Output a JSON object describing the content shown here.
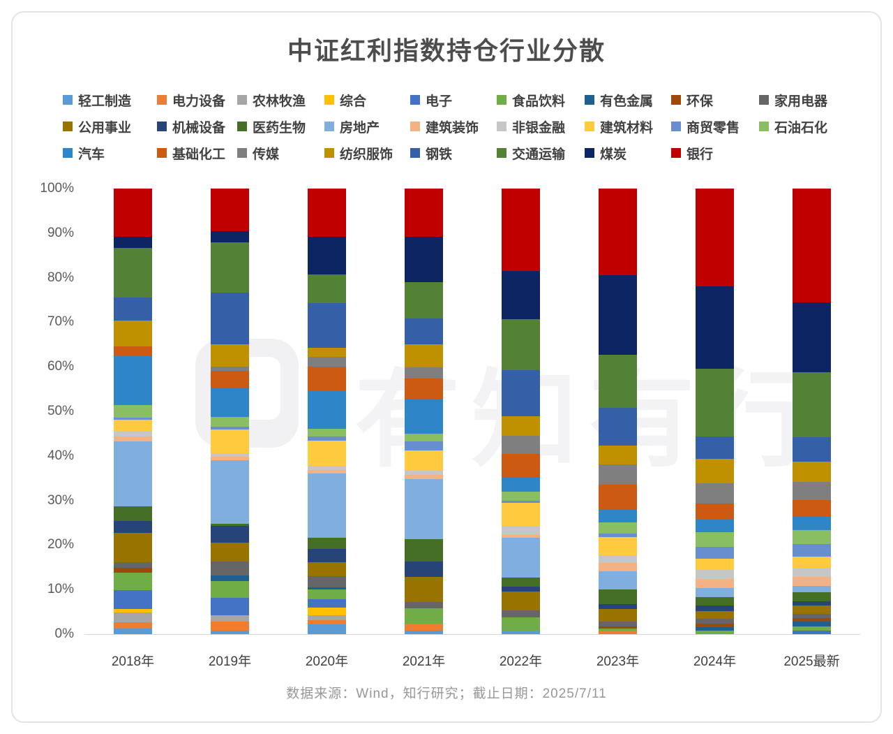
{
  "title": "中证红利指数持仓行业分散",
  "footer": "数据来源：Wind，知行研究；截止日期：2025/7/11",
  "watermark": "有知有行",
  "y_axis": {
    "ticks": [
      "100%",
      "90%",
      "80%",
      "70%",
      "60%",
      "50%",
      "40%",
      "30%",
      "20%",
      "10%",
      "0%"
    ]
  },
  "chart_data": {
    "type": "bar",
    "stacked": true,
    "unit": "percent",
    "grid": false,
    "legend_position": "top",
    "ylim": [
      0,
      100
    ],
    "categories": [
      "2018年",
      "2019年",
      "2020年",
      "2021年",
      "2022年",
      "2023年",
      "2024年",
      "2025最新"
    ],
    "series_note": "series listed bottom-to-top of stack; values are % of holdings per year",
    "series": [
      {
        "name": "轻工制造",
        "color": "#5B9BD5",
        "values": [
          1.2,
          0.8,
          2.2,
          0.8,
          0.8,
          0,
          0,
          0
        ]
      },
      {
        "name": "电力设备",
        "color": "#ED7D31",
        "values": [
          1.5,
          2.0,
          1.0,
          1.5,
          0,
          0.8,
          0,
          0
        ]
      },
      {
        "name": "农林牧渔",
        "color": "#A6A6A6",
        "values": [
          2.2,
          1.5,
          1.0,
          0,
          0,
          0,
          0,
          0
        ]
      },
      {
        "name": "综合",
        "color": "#FFC000",
        "values": [
          0.8,
          0,
          1.8,
          0,
          0,
          0,
          0,
          0
        ]
      },
      {
        "name": "电子",
        "color": "#4472C4",
        "values": [
          4.2,
          3.8,
          1.8,
          0,
          0,
          0,
          0,
          0.8
        ]
      },
      {
        "name": "食品饮料",
        "color": "#70AD47",
        "values": [
          3.8,
          3.8,
          2.2,
          3.5,
          3.0,
          0.5,
          0.8,
          1.0
        ]
      },
      {
        "name": "有色金属",
        "color": "#1F6091",
        "values": [
          0,
          1.2,
          0.5,
          0,
          0,
          0,
          0.8,
          1.0
        ]
      },
      {
        "name": "环保",
        "color": "#9E480E",
        "values": [
          1.2,
          0,
          0,
          0,
          0,
          0.5,
          0.8,
          0.8
        ]
      },
      {
        "name": "家用电器",
        "color": "#666666",
        "values": [
          1.2,
          3.2,
          2.5,
          1.5,
          1.5,
          1.0,
          1.0,
          1.0
        ]
      },
      {
        "name": "公用事业",
        "color": "#997300",
        "values": [
          6.5,
          4.2,
          3.2,
          5.5,
          4.2,
          2.8,
          1.8,
          1.8
        ]
      },
      {
        "name": "机械设备",
        "color": "#264478",
        "values": [
          2.8,
          3.8,
          3.0,
          3.5,
          1.2,
          1.2,
          1.2,
          1.0
        ]
      },
      {
        "name": "医药生物",
        "color": "#456F26",
        "values": [
          3.2,
          0.5,
          2.5,
          5.0,
          2.0,
          3.2,
          2.0,
          2.0
        ]
      },
      {
        "name": "房地产",
        "color": "#7FAEDF",
        "values": [
          14.5,
          14.2,
          14.5,
          13.5,
          9.0,
          4.2,
          2.0,
          1.5
        ]
      },
      {
        "name": "建筑装饰",
        "color": "#F4B183",
        "values": [
          1.2,
          0.8,
          0.8,
          1.0,
          0.8,
          1.8,
          2.0,
          2.0
        ]
      },
      {
        "name": "非银金融",
        "color": "#C6C6C6",
        "values": [
          1.2,
          0.8,
          0.8,
          1.0,
          1.8,
          1.8,
          2.0,
          2.0
        ]
      },
      {
        "name": "建筑材料",
        "color": "#FFCB3E",
        "values": [
          2.5,
          5.4,
          5.8,
          4.5,
          5.2,
          4.0,
          2.5,
          2.5
        ]
      },
      {
        "name": "商贸零售",
        "color": "#698ED0",
        "values": [
          0.5,
          0.6,
          0.8,
          2.0,
          0.5,
          0.8,
          2.8,
          2.8
        ]
      },
      {
        "name": "石油石化",
        "color": "#89BE63",
        "values": [
          2.7,
          2.2,
          1.8,
          1.8,
          2.0,
          2.5,
          3.2,
          3.2
        ]
      },
      {
        "name": "汽车",
        "color": "#2E86C8",
        "values": [
          11.0,
          6.5,
          8.5,
          7.8,
          3.2,
          2.8,
          3.0,
          3.2
        ]
      },
      {
        "name": "基础化工",
        "color": "#CC5A12",
        "values": [
          2.2,
          3.8,
          5.5,
          4.5,
          5.2,
          5.8,
          3.5,
          3.5
        ]
      },
      {
        "name": "传媒",
        "color": "#7F7F7F",
        "values": [
          0,
          1.0,
          2.2,
          2.5,
          4.2,
          4.5,
          4.5,
          4.2
        ]
      },
      {
        "name": "纺织服饰",
        "color": "#BF9000",
        "values": [
          5.8,
          4.9,
          2.0,
          5.2,
          4.4,
          4.2,
          5.5,
          4.5
        ]
      },
      {
        "name": "钢铁",
        "color": "#3560A8",
        "values": [
          5.2,
          11.6,
          10.0,
          5.8,
          10.2,
          8.5,
          5.0,
          5.5
        ]
      },
      {
        "name": "交通运输",
        "color": "#538135",
        "values": [
          11.0,
          11.4,
          6.5,
          8.2,
          11.5,
          12.0,
          15.2,
          14.5
        ]
      },
      {
        "name": "煤炭",
        "color": "#0E2563",
        "values": [
          2.5,
          2.5,
          8.5,
          10.2,
          10.8,
          17.8,
          18.5,
          15.8
        ]
      },
      {
        "name": "银行",
        "color": "#C00000",
        "values": [
          10.8,
          9.5,
          10.8,
          10.8,
          18.5,
          19.5,
          22.0,
          25.5
        ]
      }
    ]
  }
}
